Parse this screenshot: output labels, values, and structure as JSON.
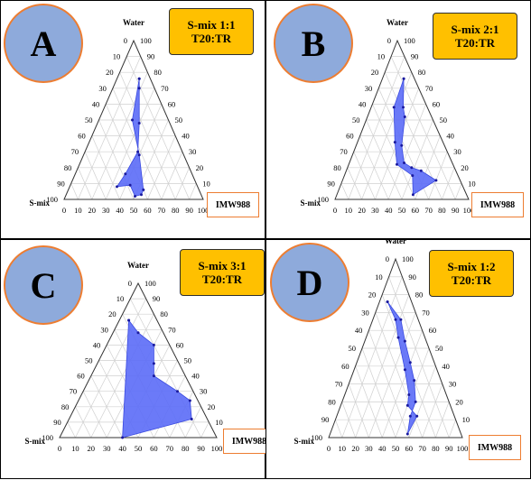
{
  "chart_data": [
    {
      "panel_label": "A",
      "type": "ternary",
      "box_lines": [
        "S-mix 1:1",
        "T20:TR"
      ],
      "axis_labels": {
        "top": "Water",
        "left": "S-mix",
        "right": "IMW988"
      },
      "ticks": [
        "0",
        "10",
        "20",
        "30",
        "40",
        "50",
        "60",
        "70",
        "80",
        "90",
        "100"
      ],
      "region": [
        {
          "water": 76,
          "smix": 8,
          "oil": 16
        },
        {
          "water": 70,
          "smix": 11,
          "oil": 19
        },
        {
          "water": 48,
          "smix": 22,
          "oil": 30
        },
        {
          "water": 30,
          "smix": 32,
          "oil": 38
        },
        {
          "water": 16,
          "smix": 48,
          "oil": 36
        },
        {
          "water": 8,
          "smix": 58,
          "oil": 34
        },
        {
          "water": 9,
          "smix": 48,
          "oil": 43
        },
        {
          "water": 2,
          "smix": 48,
          "oil": 50
        },
        {
          "water": 3,
          "smix": 43,
          "oil": 54
        },
        {
          "water": 6,
          "smix": 40,
          "oil": 54
        },
        {
          "water": 28,
          "smix": 32,
          "oil": 40
        },
        {
          "water": 50,
          "smix": 26,
          "oil": 24
        },
        {
          "water": 76,
          "smix": 8,
          "oil": 16
        }
      ]
    },
    {
      "panel_label": "B",
      "type": "ternary",
      "box_lines": [
        "S-mix 2:1",
        "T20:TR"
      ],
      "axis_labels": {
        "top": "Water",
        "left": "S-mix",
        "right": "IMW988"
      },
      "ticks": [
        "0",
        "10",
        "20",
        "30",
        "40",
        "50",
        "60",
        "70",
        "80",
        "90",
        "100"
      ],
      "region": [
        {
          "water": 76,
          "smix": 8,
          "oil": 16
        },
        {
          "water": 58,
          "smix": 18,
          "oil": 24
        },
        {
          "water": 52,
          "smix": 20,
          "oil": 28
        },
        {
          "water": 34,
          "smix": 32,
          "oil": 34
        },
        {
          "water": 23,
          "smix": 36,
          "oil": 41
        },
        {
          "water": 20,
          "smix": 32,
          "oil": 48
        },
        {
          "water": 18,
          "smix": 26,
          "oil": 56
        },
        {
          "water": 12,
          "smix": 18,
          "oil": 70
        },
        {
          "water": 3,
          "smix": 40,
          "oil": 57
        },
        {
          "water": 15,
          "smix": 34,
          "oil": 51
        },
        {
          "water": 22,
          "smix": 42,
          "oil": 36
        },
        {
          "water": 36,
          "smix": 36,
          "oil": 28
        },
        {
          "water": 58,
          "smix": 25,
          "oil": 17
        },
        {
          "water": 76,
          "smix": 8,
          "oil": 16
        }
      ]
    },
    {
      "panel_label": "C",
      "type": "ternary",
      "box_lines": [
        "S-mix 3:1",
        "T20:TR"
      ],
      "axis_labels": {
        "top": "Water",
        "left": "S-mix",
        "right": "IMW988"
      },
      "ticks": [
        "0",
        "10",
        "20",
        "30",
        "40",
        "50",
        "60",
        "70",
        "80",
        "90",
        "100"
      ],
      "region": [
        {
          "water": 76,
          "smix": 18,
          "oil": 6
        },
        {
          "water": 68,
          "smix": 16,
          "oil": 16
        },
        {
          "water": 60,
          "smix": 10,
          "oil": 30
        },
        {
          "water": 48,
          "smix": 16,
          "oil": 36
        },
        {
          "water": 40,
          "smix": 20,
          "oil": 40
        },
        {
          "water": 30,
          "smix": 10,
          "oil": 60
        },
        {
          "water": 24,
          "smix": 5,
          "oil": 71
        },
        {
          "water": 12,
          "smix": 10,
          "oil": 78
        },
        {
          "water": 0,
          "smix": 60,
          "oil": 40
        },
        {
          "water": 76,
          "smix": 18,
          "oil": 6
        }
      ]
    },
    {
      "panel_label": "D",
      "type": "ternary",
      "box_lines": [
        "S-mix 1:2",
        "T20:TR"
      ],
      "axis_labels": {
        "top": "Water",
        "left": "S-mix",
        "right": "IMW988"
      },
      "ticks": [
        "0",
        "10",
        "20",
        "30",
        "40",
        "50",
        "60",
        "70",
        "80",
        "90",
        "100"
      ],
      "region": [
        {
          "water": 76,
          "smix": 18,
          "oil": 6
        },
        {
          "water": 66,
          "smix": 13,
          "oil": 21
        },
        {
          "water": 54,
          "smix": 16,
          "oil": 30
        },
        {
          "water": 42,
          "smix": 18,
          "oil": 40
        },
        {
          "water": 32,
          "smix": 20,
          "oil": 48
        },
        {
          "water": 20,
          "smix": 25,
          "oil": 55
        },
        {
          "water": 12,
          "smix": 33,
          "oil": 55
        },
        {
          "water": 2,
          "smix": 40,
          "oil": 58
        },
        {
          "water": 12,
          "smix": 28,
          "oil": 60
        },
        {
          "water": 18,
          "smix": 32,
          "oil": 50
        },
        {
          "water": 24,
          "smix": 28,
          "oil": 48
        },
        {
          "water": 38,
          "smix": 24,
          "oil": 38
        },
        {
          "water": 56,
          "smix": 20,
          "oil": 24
        },
        {
          "water": 66,
          "smix": 17,
          "oil": 17
        },
        {
          "water": 76,
          "smix": 18,
          "oil": 6
        }
      ]
    }
  ]
}
